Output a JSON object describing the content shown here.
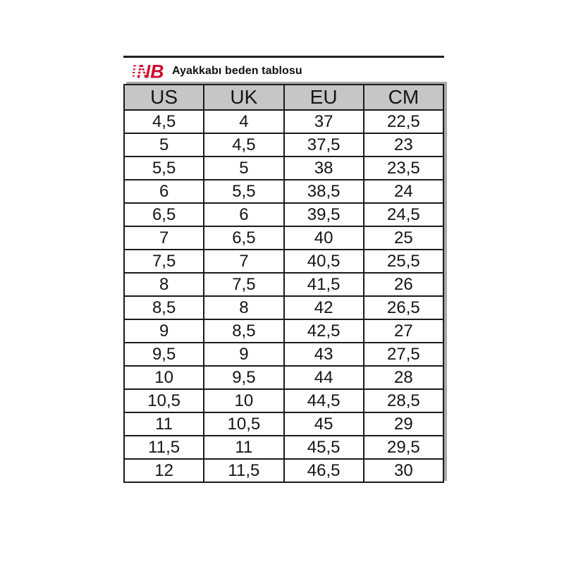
{
  "header": {
    "title": "Ayakkabı beden tablosu",
    "logo": {
      "text": "NB",
      "color": "#cf0a2c"
    }
  },
  "size_table": {
    "columns": [
      "US",
      "UK",
      "EU",
      "CM"
    ],
    "rows": [
      [
        "4,5",
        "4",
        "37",
        "22,5"
      ],
      [
        "5",
        "4,5",
        "37,5",
        "23"
      ],
      [
        "5,5",
        "5",
        "38",
        "23,5"
      ],
      [
        "6",
        "5,5",
        "38,5",
        "24"
      ],
      [
        "6,5",
        "6",
        "39,5",
        "24,5"
      ],
      [
        "7",
        "6,5",
        "40",
        "25"
      ],
      [
        "7,5",
        "7",
        "40,5",
        "25,5"
      ],
      [
        "8",
        "7,5",
        "41,5",
        "26"
      ],
      [
        "8,5",
        "8",
        "42",
        "26,5"
      ],
      [
        "9",
        "8,5",
        "42,5",
        "27"
      ],
      [
        "9,5",
        "9",
        "43",
        "27,5"
      ],
      [
        "10",
        "9,5",
        "44",
        "28"
      ],
      [
        "10,5",
        "10",
        "44,5",
        "28,5"
      ],
      [
        "11",
        "10,5",
        "45",
        "29"
      ],
      [
        "11,5",
        "11",
        "45,5",
        "29,5"
      ],
      [
        "12",
        "11,5",
        "46,5",
        "30"
      ]
    ],
    "colors": {
      "header_bg": "#c6c6c6",
      "border": "#1b1b1b"
    }
  }
}
